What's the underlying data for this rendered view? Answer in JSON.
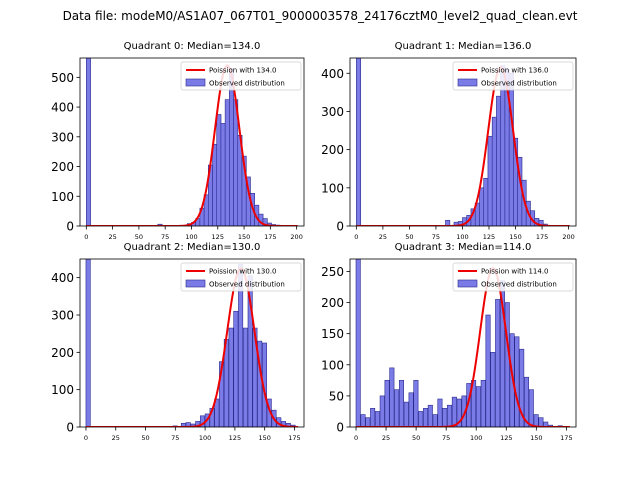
{
  "figure_title": "Data file: modeM0/AS1A07_067T01_9000003578_24176cztM0_level2_quad_clean.evt",
  "colors": {
    "hist_fill": "#7b7be8",
    "hist_edge": "#2a2a8c",
    "poisson": "#ee0000"
  },
  "chart_data": [
    {
      "type": "bar",
      "title": "Quadrant 0: Median=134.0",
      "legend": [
        "Poission with 134.0",
        "Observed distribution"
      ],
      "legend_position": "top-right",
      "xlim": [
        -6,
        207
      ],
      "ylim": [
        0,
        565
      ],
      "xticks": [
        0,
        25,
        50,
        75,
        100,
        125,
        150,
        175,
        200
      ],
      "yticks": [
        0,
        100,
        200,
        300,
        400,
        500
      ],
      "bin_width": 4.1,
      "bins": [
        [
          0,
          565
        ],
        [
          68,
          6
        ],
        [
          96,
          8
        ],
        [
          100,
          12
        ],
        [
          104,
          25
        ],
        [
          108,
          60
        ],
        [
          112,
          105
        ],
        [
          116,
          205
        ],
        [
          120,
          275
        ],
        [
          124,
          375
        ],
        [
          128,
          345
        ],
        [
          132,
          425
        ],
        [
          136,
          530
        ],
        [
          140,
          425
        ],
        [
          144,
          305
        ],
        [
          148,
          235
        ],
        [
          152,
          165
        ],
        [
          156,
          110
        ],
        [
          160,
          70
        ],
        [
          164,
          40
        ],
        [
          168,
          25
        ],
        [
          172,
          10
        ],
        [
          176,
          5
        ],
        [
          180,
          3
        ]
      ],
      "poisson_mean": 134.0,
      "poisson_peak": 540,
      "curve_range": [
        0,
        201
      ]
    },
    {
      "type": "bar",
      "title": "Quadrant 1: Median=136.0",
      "legend": [
        "Poission with 136.0",
        "Observed distribution"
      ],
      "legend_position": "top-right",
      "xlim": [
        -6,
        207
      ],
      "ylim": [
        0,
        440
      ],
      "xticks": [
        0,
        25,
        50,
        75,
        100,
        125,
        150,
        175,
        200
      ],
      "yticks": [
        0,
        100,
        200,
        300,
        400
      ],
      "bin_width": 4.1,
      "bins": [
        [
          0,
          440
        ],
        [
          84,
          15
        ],
        [
          92,
          10
        ],
        [
          96,
          12
        ],
        [
          100,
          22
        ],
        [
          104,
          28
        ],
        [
          108,
          45
        ],
        [
          112,
          60
        ],
        [
          116,
          100
        ],
        [
          120,
          125
        ],
        [
          124,
          235
        ],
        [
          128,
          285
        ],
        [
          132,
          340
        ],
        [
          136,
          420
        ],
        [
          140,
          410
        ],
        [
          144,
          400
        ],
        [
          148,
          230
        ],
        [
          152,
          180
        ],
        [
          156,
          120
        ],
        [
          160,
          65
        ],
        [
          164,
          40
        ],
        [
          168,
          20
        ],
        [
          172,
          15
        ],
        [
          176,
          5
        ]
      ],
      "poisson_mean": 136.0,
      "poisson_peak": 415,
      "curve_range": [
        0,
        201
      ]
    },
    {
      "type": "bar",
      "title": "Quadrant 2: Median=130.0",
      "legend": [
        "Poission with 130.0",
        "Observed distribution"
      ],
      "legend_position": "top-right",
      "xlim": [
        -5,
        183
      ],
      "ylim": [
        0,
        450
      ],
      "xticks": [
        0,
        25,
        50,
        75,
        100,
        125,
        150,
        175
      ],
      "yticks": [
        0,
        100,
        200,
        300,
        400
      ],
      "bin_width": 3.65,
      "bins": [
        [
          0,
          450
        ],
        [
          73,
          3
        ],
        [
          80,
          10
        ],
        [
          84,
          12
        ],
        [
          88,
          8
        ],
        [
          92,
          15
        ],
        [
          96,
          30
        ],
        [
          100,
          35
        ],
        [
          104,
          50
        ],
        [
          108,
          75
        ],
        [
          112,
          175
        ],
        [
          116,
          235
        ],
        [
          120,
          265
        ],
        [
          124,
          310
        ],
        [
          128,
          435
        ],
        [
          132,
          265
        ],
        [
          136,
          405
        ],
        [
          140,
          265
        ],
        [
          144,
          230
        ],
        [
          148,
          225
        ],
        [
          152,
          75
        ],
        [
          156,
          45
        ],
        [
          160,
          25
        ],
        [
          164,
          15
        ],
        [
          168,
          10
        ],
        [
          172,
          5
        ]
      ],
      "poisson_mean": 130.0,
      "poisson_peak": 425,
      "curve_range": [
        0,
        178
      ]
    },
    {
      "type": "bar",
      "title": "Quadrant 3: Median=114.0",
      "legend": [
        "Poission with 114.0",
        "Observed distribution"
      ],
      "legend_position": "top-right",
      "xlim": [
        -5,
        183
      ],
      "ylim": [
        0,
        270
      ],
      "xticks": [
        0,
        25,
        50,
        75,
        100,
        125,
        150,
        175
      ],
      "yticks": [
        0,
        50,
        100,
        150,
        200,
        250
      ],
      "bin_width": 3.65,
      "bins": [
        [
          0,
          270
        ],
        [
          4,
          20
        ],
        [
          8,
          15
        ],
        [
          12,
          30
        ],
        [
          16,
          25
        ],
        [
          20,
          50
        ],
        [
          24,
          75
        ],
        [
          28,
          95
        ],
        [
          32,
          60
        ],
        [
          36,
          75
        ],
        [
          40,
          40
        ],
        [
          44,
          55
        ],
        [
          48,
          75
        ],
        [
          52,
          25
        ],
        [
          56,
          30
        ],
        [
          60,
          35
        ],
        [
          64,
          20
        ],
        [
          68,
          45
        ],
        [
          72,
          30
        ],
        [
          76,
          35
        ],
        [
          80,
          48
        ],
        [
          84,
          45
        ],
        [
          88,
          50
        ],
        [
          92,
          70
        ],
        [
          96,
          75
        ],
        [
          100,
          65
        ],
        [
          104,
          75
        ],
        [
          108,
          180
        ],
        [
          112,
          120
        ],
        [
          116,
          205
        ],
        [
          120,
          235
        ],
        [
          124,
          200
        ],
        [
          128,
          150
        ],
        [
          132,
          145
        ],
        [
          136,
          125
        ],
        [
          140,
          80
        ],
        [
          144,
          60
        ],
        [
          148,
          20
        ],
        [
          152,
          15
        ],
        [
          156,
          8
        ],
        [
          160,
          3
        ],
        [
          168,
          2
        ]
      ],
      "poisson_mean": 114.0,
      "poisson_peak": 255,
      "curve_range": [
        0,
        178
      ]
    }
  ]
}
